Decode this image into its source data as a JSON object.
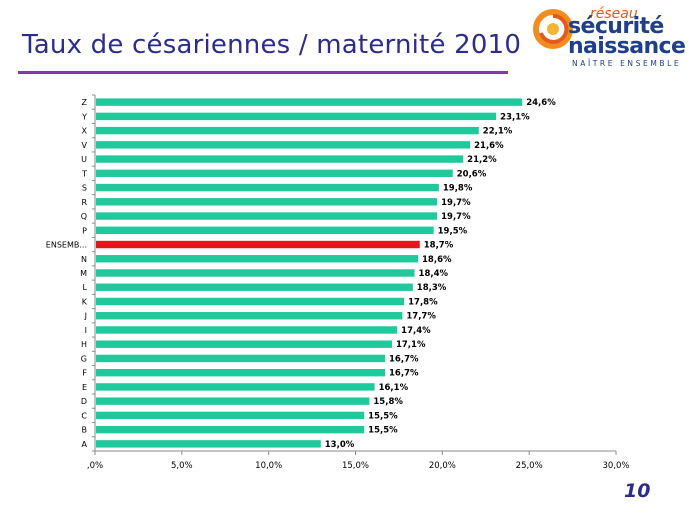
{
  "slide": {
    "title": "Taux de césariennes / maternité 2010",
    "page_number": "10"
  },
  "logo": {
    "line1": "réseau",
    "line2": "sécurité",
    "line3": "naissance",
    "tagline": "NAÎTRE ENSEMBLE"
  },
  "colors": {
    "bar": "#1fc99c",
    "highlight_bar": "#e8141b",
    "title": "#2c2c8c",
    "rule": "#7a3fa0"
  },
  "chart_data": {
    "type": "bar",
    "orientation": "horizontal",
    "title": "",
    "xlabel": "",
    "ylabel": "",
    "categories": [
      "Z",
      "Y",
      "X",
      "V",
      "U",
      "T",
      "S",
      "R",
      "Q",
      "P",
      "ENSEMB...",
      "N",
      "M",
      "L",
      "K",
      "J",
      "I",
      "H",
      "G",
      "F",
      "E",
      "D",
      "C",
      "B",
      "A"
    ],
    "values": [
      24.6,
      23.1,
      22.1,
      21.6,
      21.2,
      20.6,
      19.8,
      19.7,
      19.7,
      19.5,
      18.7,
      18.6,
      18.4,
      18.3,
      17.8,
      17.7,
      17.4,
      17.1,
      16.7,
      16.7,
      16.1,
      15.8,
      15.5,
      15.5,
      13.0
    ],
    "value_labels": [
      "24,6%",
      "23,1%",
      "22,1%",
      "21,6%",
      "21,2%",
      "20,6%",
      "19,8%",
      "19,7%",
      "19,7%",
      "19,5%",
      "18,7%",
      "18,6%",
      "18,4%",
      "18,3%",
      "17,8%",
      "17,7%",
      "17,4%",
      "17,1%",
      "16,7%",
      "16,7%",
      "16,1%",
      "15,8%",
      "15,5%",
      "15,5%",
      "13,0%"
    ],
    "highlight_category": "ENSEMB...",
    "xlim": [
      0,
      30
    ],
    "x_ticks": [
      0,
      5,
      10,
      15,
      20,
      25,
      30
    ],
    "x_tick_labels": [
      ",0%",
      "5,0%",
      "10,0%",
      "15,0%",
      "20,0%",
      "25,0%",
      "30,0%"
    ],
    "grid": false,
    "legend": "none"
  }
}
